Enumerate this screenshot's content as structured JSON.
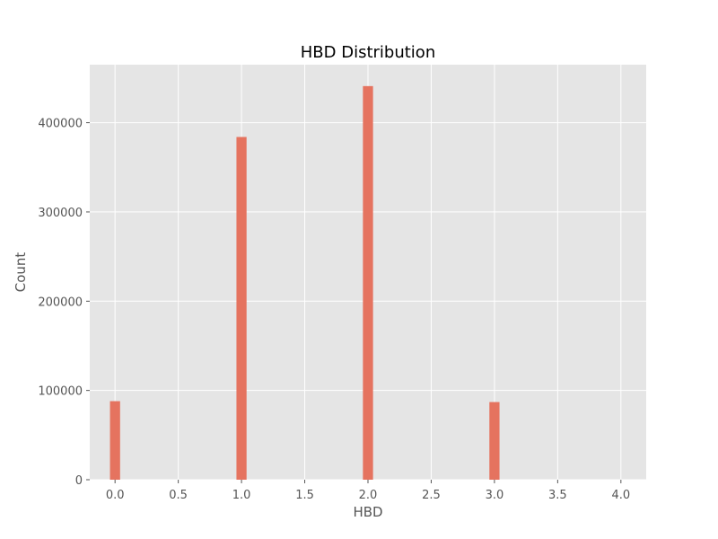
{
  "chart_data": {
    "type": "bar",
    "title": "HBD Distribution",
    "xlabel": "HBD",
    "ylabel": "Count",
    "xlim": [
      -0.2,
      4.2
    ],
    "ylim": [
      0,
      465000
    ],
    "x_ticks": [
      "0.0",
      "0.5",
      "1.0",
      "1.5",
      "2.0",
      "2.5",
      "3.0",
      "3.5",
      "4.0"
    ],
    "y_ticks": [
      "0",
      "100000",
      "200000",
      "300000",
      "400000"
    ],
    "bin_width": 0.08,
    "x": [
      0,
      1,
      2,
      3
    ],
    "values": [
      88000,
      384000,
      441000,
      87000
    ],
    "grid": true,
    "colors": {
      "bar": "#e5735f",
      "plot_background": "#e5e5e5",
      "grid": "#ffffff"
    }
  }
}
